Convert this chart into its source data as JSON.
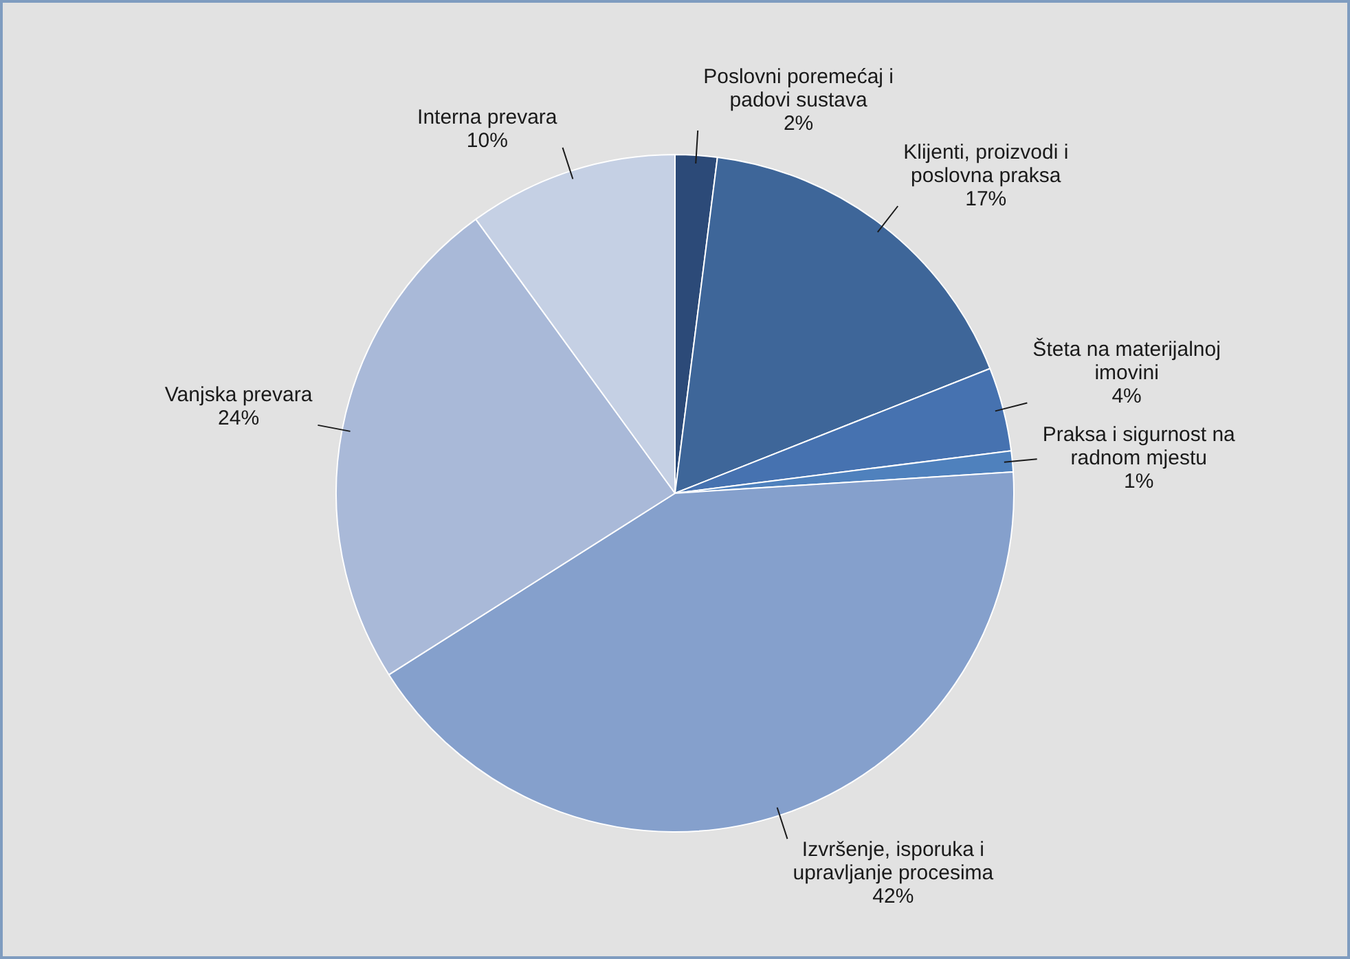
{
  "chart_data": {
    "type": "pie",
    "categories": [
      "Poslovni poremećaj i padovi sustava",
      "Klijenti, proizvodi i poslovna praksa",
      "Šteta na materijalnoj imovini",
      "Praksa i sigurnost na radnom mjestu",
      "Izvršenje, isporuka i upravljanje procesima",
      "Vanjska prevara",
      "Interna prevara"
    ],
    "values": [
      2,
      17,
      4,
      1,
      42,
      24,
      10
    ],
    "value_labels": [
      "2%",
      "17%",
      "4%",
      "1%",
      "42%",
      "24%",
      "10%"
    ],
    "colors": [
      "#2c4a78",
      "#3e6699",
      "#4672b0",
      "#4f81bd",
      "#85a0cc",
      "#a9b9d8",
      "#c5d0e4"
    ],
    "legend": false
  }
}
